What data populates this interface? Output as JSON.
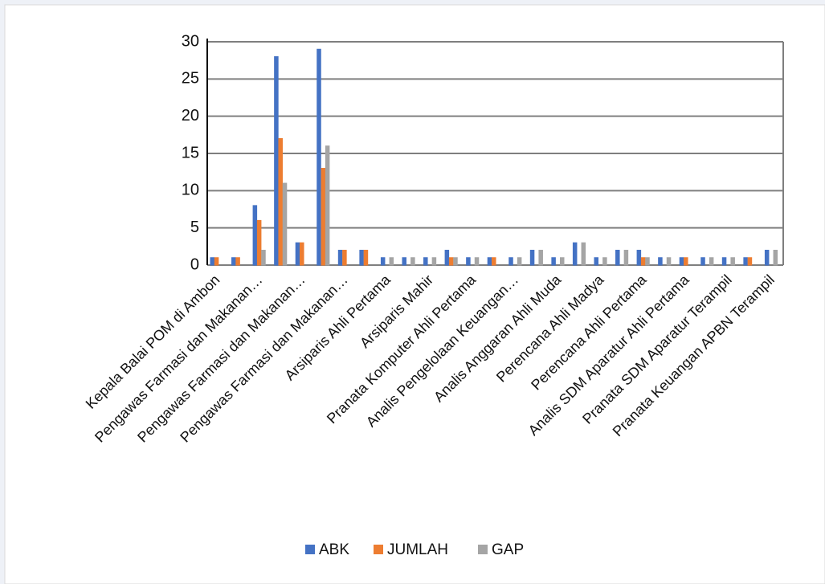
{
  "chart_data": {
    "type": "bar",
    "categories": [
      "Kepala Balai POM di Ambon",
      null,
      "Pengawas Farmasi dan Makanan…",
      null,
      "Pengawas Farmasi dan Makanan…",
      null,
      "Pengawas Farmasi dan Makanan…",
      null,
      "Arsiparis Ahli Pertama",
      null,
      "Arsiparis Mahir",
      null,
      "Pranata Komputer Ahli Pertama",
      null,
      "Analis Pengelolaan Keuangan…",
      null,
      "Analis Anggaran Ahli Muda",
      null,
      "Perencana Ahli Madya",
      null,
      "Perencana Ahli Pertama",
      null,
      "Analis SDM Aparatur Ahli Pertama",
      null,
      "Pranata SDM Aparatur Terampil",
      null,
      "Pranata Keuangan APBN Terampil"
    ],
    "series": [
      {
        "name": "ABK",
        "color": "#4472c4",
        "values": [
          1,
          1,
          8,
          28,
          3,
          29,
          2,
          2,
          1,
          1,
          1,
          2,
          1,
          1,
          1,
          2,
          1,
          3,
          1,
          2,
          2,
          1,
          1,
          1,
          1,
          1,
          2
        ]
      },
      {
        "name": "JUMLAH",
        "color": "#ed7d31",
        "values": [
          1,
          1,
          6,
          17,
          3,
          13,
          2,
          2,
          0,
          0,
          0,
          1,
          0,
          1,
          0,
          0,
          0,
          0,
          0,
          0,
          1,
          0,
          1,
          0,
          0,
          1,
          0
        ]
      },
      {
        "name": "GAP",
        "color": "#a5a5a5",
        "values": [
          0,
          0,
          2,
          11,
          0,
          16,
          0,
          0,
          1,
          1,
          1,
          1,
          1,
          0,
          1,
          2,
          1,
          3,
          1,
          2,
          1,
          1,
          0,
          1,
          1,
          0,
          2
        ]
      }
    ],
    "ylim": [
      0,
      30
    ],
    "yticks": [
      0,
      5,
      10,
      15,
      20,
      25,
      30
    ],
    "grid": true,
    "legend": "bottom"
  }
}
